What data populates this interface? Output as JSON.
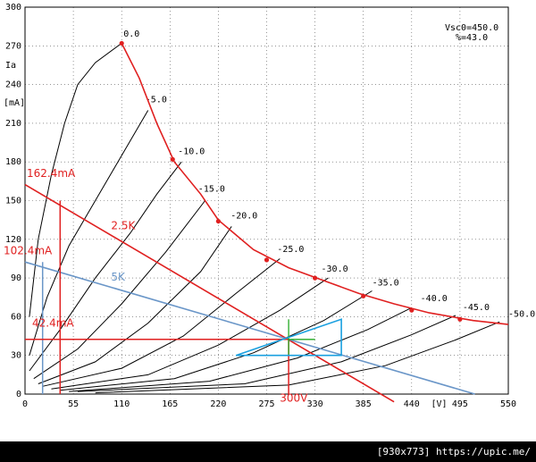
{
  "chart_data": {
    "type": "line",
    "title": "",
    "xlabel": "[V]",
    "ylabel": "Ia [mA]",
    "xlim": [
      0,
      550
    ],
    "ylim": [
      0,
      300
    ],
    "x_ticks": [
      0,
      55,
      110,
      165,
      220,
      275,
      330,
      385,
      440,
      495,
      550
    ],
    "y_ticks": [
      0,
      30,
      60,
      90,
      120,
      150,
      180,
      210,
      240,
      270,
      300
    ],
    "y_tick_labels": [
      "0",
      "30",
      "60",
      "90",
      "120",
      "150",
      "180",
      "210",
      "240",
      "270",
      "300"
    ],
    "x_tick_labels": [
      "0",
      "55",
      "110",
      "165",
      "220",
      "275",
      "330",
      "385",
      "440",
      "495",
      "550"
    ],
    "grid": true,
    "params": {
      "vsc0": "Vsc0=450.0",
      "pct": "%=43.0"
    },
    "grid_curves": [
      {
        "label": "0.0",
        "points": [
          [
            5,
            60
          ],
          [
            15,
            120
          ],
          [
            30,
            170
          ],
          [
            45,
            210
          ],
          [
            60,
            240
          ],
          [
            80,
            257
          ],
          [
            110,
            272
          ]
        ]
      },
      {
        "label": "-5.0",
        "points": [
          [
            5,
            30
          ],
          [
            25,
            75
          ],
          [
            50,
            115
          ],
          [
            80,
            150
          ],
          [
            110,
            185
          ],
          [
            140,
            220
          ]
        ]
      },
      {
        "label": "-10.0",
        "points": [
          [
            5,
            18
          ],
          [
            40,
            50
          ],
          [
            80,
            90
          ],
          [
            120,
            125
          ],
          [
            150,
            155
          ],
          [
            178,
            180
          ]
        ]
      },
      {
        "label": "-15.0",
        "points": [
          [
            10,
            12
          ],
          [
            60,
            35
          ],
          [
            110,
            70
          ],
          [
            160,
            110
          ],
          [
            205,
            150
          ]
        ]
      },
      {
        "label": "-20.0",
        "points": [
          [
            15,
            8
          ],
          [
            80,
            25
          ],
          [
            140,
            55
          ],
          [
            200,
            95
          ],
          [
            235,
            130
          ]
        ]
      },
      {
        "label": "-25.0",
        "points": [
          [
            20,
            6
          ],
          [
            110,
            20
          ],
          [
            180,
            45
          ],
          [
            240,
            78
          ],
          [
            290,
            105
          ]
        ]
      },
      {
        "label": "-30.0",
        "points": [
          [
            30,
            4
          ],
          [
            140,
            15
          ],
          [
            220,
            38
          ],
          [
            290,
            65
          ],
          [
            345,
            90
          ]
        ]
      },
      {
        "label": "-35.0",
        "points": [
          [
            40,
            3
          ],
          [
            170,
            12
          ],
          [
            260,
            32
          ],
          [
            340,
            57
          ],
          [
            395,
            80
          ]
        ]
      },
      {
        "label": "-40.0",
        "points": [
          [
            50,
            2
          ],
          [
            210,
            10
          ],
          [
            310,
            28
          ],
          [
            390,
            50
          ],
          [
            440,
            67
          ]
        ]
      },
      {
        "label": "-45.0",
        "points": [
          [
            60,
            2
          ],
          [
            250,
            8
          ],
          [
            360,
            25
          ],
          [
            440,
            46
          ],
          [
            490,
            61
          ]
        ]
      },
      {
        "label": "-50.0",
        "points": [
          [
            80,
            1
          ],
          [
            300,
            7
          ],
          [
            410,
            22
          ],
          [
            490,
            42
          ],
          [
            540,
            56
          ]
        ]
      }
    ],
    "curve_label_positions": [
      [
        110,
        275
      ],
      [
        135,
        224
      ],
      [
        172,
        184
      ],
      [
        195,
        155
      ],
      [
        232,
        134
      ],
      [
        285,
        108
      ],
      [
        335,
        93
      ],
      [
        393,
        82
      ],
      [
        448,
        70
      ],
      [
        496,
        63
      ],
      [
        548,
        58
      ]
    ],
    "dissipation_curve": [
      [
        110,
        272
      ],
      [
        130,
        245
      ],
      [
        150,
        210
      ],
      [
        170,
        180
      ],
      [
        200,
        155
      ],
      [
        220,
        135
      ],
      [
        260,
        112
      ],
      [
        300,
        98
      ],
      [
        340,
        88
      ],
      [
        380,
        78
      ],
      [
        420,
        70
      ],
      [
        460,
        63
      ],
      [
        510,
        57
      ],
      [
        550,
        54
      ]
    ],
    "dissipation_markers": [
      [
        110,
        272
      ],
      [
        168,
        182
      ],
      [
        220,
        134
      ],
      [
        275,
        104
      ],
      [
        330,
        90
      ],
      [
        385,
        76
      ],
      [
        440,
        65
      ],
      [
        495,
        58
      ]
    ],
    "load_lines": [
      {
        "name": "2.5K",
        "color": "#e02020",
        "points": [
          [
            0,
            162.4
          ],
          [
            420,
            -6
          ]
        ]
      },
      {
        "name": "5K",
        "color": "#6a96c8",
        "points": [
          [
            0,
            102.4
          ],
          [
            512,
            0
          ]
        ]
      }
    ],
    "operating_point": {
      "x": 300,
      "y": 42.4
    },
    "annotations": [
      {
        "text": "162.4mA",
        "color": "red"
      },
      {
        "text": "102.4mA",
        "color": "red"
      },
      {
        "text": "42.4mA",
        "color": "red"
      },
      {
        "text": "2.5K",
        "color": "red"
      },
      {
        "text": "5K",
        "color": "blue"
      },
      {
        "text": "300V",
        "color": "red"
      }
    ],
    "guide_lines": {
      "h_162": [
        [
          0,
          162.4
        ],
        [
          0,
          162.4
        ]
      ],
      "v_40": [
        [
          40,
          0
        ],
        [
          40,
          150
        ]
      ],
      "v_20": [
        [
          20,
          0
        ],
        [
          20,
          102.4
        ]
      ],
      "h_42": [
        [
          0,
          42.4
        ],
        [
          300,
          42.4
        ]
      ],
      "v_300": [
        [
          300,
          0
        ],
        [
          300,
          42.4
        ]
      ]
    },
    "signal_triangle": {
      "green_v": [
        [
          300,
          30
        ],
        [
          300,
          58
        ]
      ],
      "green_h": [
        [
          300,
          42.4
        ],
        [
          330,
          42.4
        ]
      ],
      "cyan": [
        [
          240,
          30
        ],
        [
          360,
          58
        ],
        [
          360,
          30
        ]
      ]
    }
  },
  "footer": {
    "text": "[930x773] https://upic.me/"
  }
}
